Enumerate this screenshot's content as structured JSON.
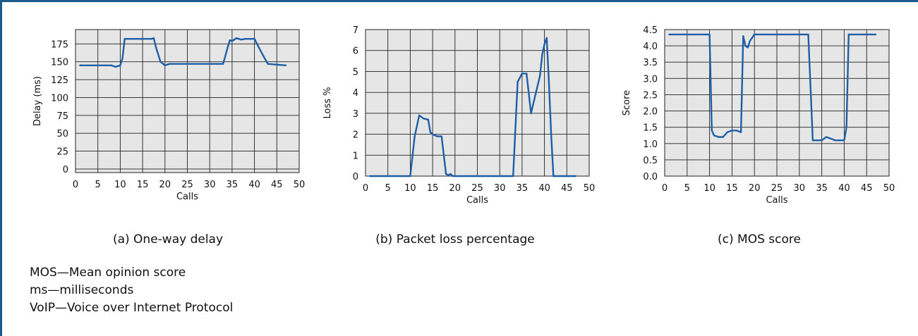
{
  "accent_color": "#1a5a8c",
  "line_color": "#1f5fa8",
  "plot_bg": "#e6e6e6",
  "chart_data": [
    {
      "type": "line",
      "caption": "(a) One-way delay",
      "xlabel": "Calls",
      "ylabel": "Delay (ms)",
      "xlim": [
        0,
        50
      ],
      "ylim": [
        -5,
        195
      ],
      "xticks": [
        "0",
        "5",
        "10",
        "15",
        "20",
        "25",
        "30",
        "35",
        "40",
        "45",
        "50"
      ],
      "yticks": [
        "0",
        "25",
        "50",
        "75",
        "100",
        "125",
        "150",
        "175"
      ],
      "grid": true,
      "series": [
        {
          "x": [
            1,
            8,
            9,
            10,
            10.5,
            11,
            17,
            17.5,
            18,
            19,
            20,
            21,
            33,
            34,
            34.5,
            35,
            36,
            37,
            38,
            40,
            41,
            42,
            43,
            47
          ],
          "y": [
            145,
            145,
            143,
            145,
            155,
            182,
            182,
            183,
            170,
            150,
            145,
            147,
            147,
            170,
            180,
            179,
            183,
            181,
            182,
            182,
            170,
            158,
            147,
            145
          ]
        }
      ]
    },
    {
      "type": "line",
      "caption": "(b) Packet loss percentage",
      "xlabel": "Calls",
      "ylabel": "Loss %",
      "xlim": [
        0,
        50
      ],
      "ylim": [
        0,
        7
      ],
      "xticks": [
        "0",
        "5",
        "10",
        "15",
        "20",
        "25",
        "30",
        "35",
        "40",
        "45",
        "50"
      ],
      "yticks": [
        "0",
        "1",
        "2",
        "3",
        "4",
        "5",
        "6",
        "7"
      ],
      "grid": true,
      "series": [
        {
          "x": [
            1,
            10,
            11,
            12,
            13,
            14,
            14.5,
            15,
            16,
            17,
            18,
            18.5,
            19,
            19.5,
            20,
            33,
            34,
            35,
            36,
            37,
            38,
            39,
            39.5,
            40,
            40.5,
            41,
            41.5,
            42,
            47
          ],
          "y": [
            0,
            0,
            1.9,
            2.9,
            2.75,
            2.7,
            2.1,
            2.0,
            1.9,
            1.9,
            0.1,
            0.05,
            0.1,
            0,
            0,
            0,
            4.5,
            4.9,
            4.9,
            3.0,
            3.9,
            4.8,
            5.8,
            6.3,
            6.6,
            4.5,
            2.0,
            0,
            0
          ]
        }
      ]
    },
    {
      "type": "line",
      "caption": "(c) MOS score",
      "xlabel": "Calls",
      "ylabel": "Score",
      "xlim": [
        0,
        50
      ],
      "ylim": [
        0,
        4.5
      ],
      "xticks": [
        "0",
        "5",
        "10",
        "15",
        "20",
        "25",
        "30",
        "35",
        "40",
        "45",
        "50"
      ],
      "yticks": [
        "0.0",
        "0.5",
        "1.0",
        "1.5",
        "2.0",
        "2.5",
        "3.0",
        "3.5",
        "4.0",
        "4.5"
      ],
      "grid": true,
      "series": [
        {
          "x": [
            1,
            10,
            10.5,
            11,
            12,
            13,
            14,
            15,
            16,
            17,
            17.5,
            18,
            18.5,
            19,
            20,
            32,
            33,
            34,
            35,
            36,
            37,
            38,
            39,
            40,
            40.5,
            41,
            47
          ],
          "y": [
            4.35,
            4.35,
            1.4,
            1.25,
            1.2,
            1.2,
            1.35,
            1.4,
            1.4,
            1.35,
            4.3,
            4.0,
            3.95,
            4.15,
            4.35,
            4.35,
            1.1,
            1.1,
            1.1,
            1.2,
            1.15,
            1.1,
            1.1,
            1.1,
            1.5,
            4.35,
            4.35
          ]
        }
      ]
    }
  ],
  "legend_lines": [
    "MOS—Mean opinion score",
    "ms—milliseconds",
    "VoIP—Voice over Internet Protocol"
  ]
}
